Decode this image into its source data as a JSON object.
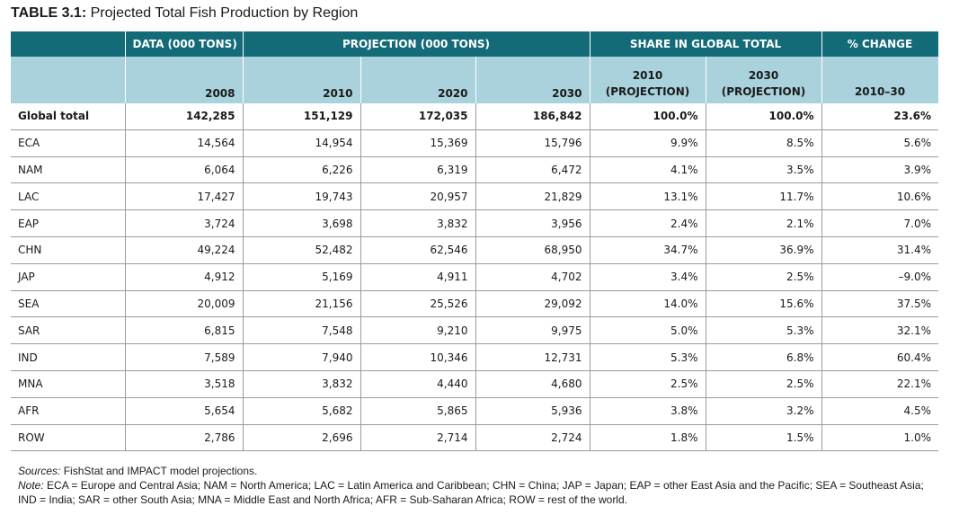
{
  "title": {
    "lead": "TABLE 3.1:",
    "text": "Projected Total Fish Production by Region"
  },
  "header": {
    "groups": [
      "DATA (000 TONS)",
      "PROJECTION (000 TONS)",
      "SHARE IN GLOBAL TOTAL",
      "% CHANGE"
    ],
    "columns": {
      "c2008": "2008",
      "c2010": "2010",
      "c2020": "2020",
      "c2030": "2030",
      "s2010_year": "2010",
      "s2010_sub": "(PROJECTION)",
      "s2030_year": "2030",
      "s2030_sub": "(PROJECTION)",
      "change": "2010–30"
    }
  },
  "rows": [
    {
      "region": "Global total",
      "v2008": "142,285",
      "v2010": "151,129",
      "v2020": "172,035",
      "v2030": "186,842",
      "s2010": "100.0%",
      "s2030": "100.0%",
      "chg": "23.6%"
    },
    {
      "region": "ECA",
      "v2008": "14,564",
      "v2010": "14,954",
      "v2020": "15,369",
      "v2030": "15,796",
      "s2010": "9.9%",
      "s2030": "8.5%",
      "chg": "5.6%"
    },
    {
      "region": "NAM",
      "v2008": "6,064",
      "v2010": "6,226",
      "v2020": "6,319",
      "v2030": "6,472",
      "s2010": "4.1%",
      "s2030": "3.5%",
      "chg": "3.9%"
    },
    {
      "region": "LAC",
      "v2008": "17,427",
      "v2010": "19,743",
      "v2020": "20,957",
      "v2030": "21,829",
      "s2010": "13.1%",
      "s2030": "11.7%",
      "chg": "10.6%"
    },
    {
      "region": "EAP",
      "v2008": "3,724",
      "v2010": "3,698",
      "v2020": "3,832",
      "v2030": "3,956",
      "s2010": "2.4%",
      "s2030": "2.1%",
      "chg": "7.0%"
    },
    {
      "region": "CHN",
      "v2008": "49,224",
      "v2010": "52,482",
      "v2020": "62,546",
      "v2030": "68,950",
      "s2010": "34.7%",
      "s2030": "36.9%",
      "chg": "31.4%"
    },
    {
      "region": "JAP",
      "v2008": "4,912",
      "v2010": "5,169",
      "v2020": "4,911",
      "v2030": "4,702",
      "s2010": "3.4%",
      "s2030": "2.5%",
      "chg": "–9.0%"
    },
    {
      "region": "SEA",
      "v2008": "20,009",
      "v2010": "21,156",
      "v2020": "25,526",
      "v2030": "29,092",
      "s2010": "14.0%",
      "s2030": "15.6%",
      "chg": "37.5%"
    },
    {
      "region": "SAR",
      "v2008": "6,815",
      "v2010": "7,548",
      "v2020": "9,210",
      "v2030": "9,975",
      "s2010": "5.0%",
      "s2030": "5.3%",
      "chg": "32.1%"
    },
    {
      "region": "IND",
      "v2008": "7,589",
      "v2010": "7,940",
      "v2020": "10,346",
      "v2030": "12,731",
      "s2010": "5.3%",
      "s2030": "6.8%",
      "chg": "60.4%"
    },
    {
      "region": "MNA",
      "v2008": "3,518",
      "v2010": "3,832",
      "v2020": "4,440",
      "v2030": "4,680",
      "s2010": "2.5%",
      "s2030": "2.5%",
      "chg": "22.1%"
    },
    {
      "region": "AFR",
      "v2008": "5,654",
      "v2010": "5,682",
      "v2020": "5,865",
      "v2030": "5,936",
      "s2010": "3.8%",
      "s2030": "3.2%",
      "chg": "4.5%"
    },
    {
      "region": "ROW",
      "v2008": "2,786",
      "v2010": "2,696",
      "v2020": "2,714",
      "v2030": "2,724",
      "s2010": "1.8%",
      "s2030": "1.5%",
      "chg": "1.0%"
    }
  ],
  "notes": {
    "sources_label": "Sources:",
    "sources_text": "FishStat and IMPACT model projections.",
    "note_label": "Note:",
    "note_text": "ECA = Europe and Central Asia; NAM = North America; LAC = Latin America and Caribbean; CHN = China; JAP = Japan; EAP = other East Asia and the Pacific; SEA = Southeast Asia; IND = India; SAR = other South Asia; MNA = Middle East and North Africa; AFR = Sub-Saharan Africa; ROW = rest of the world."
  },
  "colors": {
    "header_dark": "#146b78",
    "header_light": "#a9d2dc",
    "rule": "#9a9a9a"
  }
}
